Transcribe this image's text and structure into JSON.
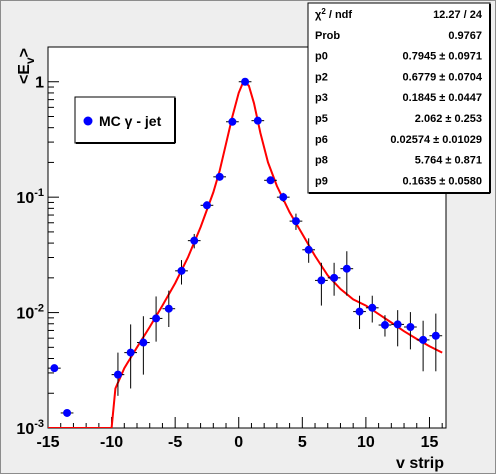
{
  "chart_data": {
    "type": "scatter",
    "xlabel": "v strip",
    "ylabel": "<E",
    "ylabel_sub": "v",
    "ylabel_close": ">",
    "xlim": [
      -15,
      16.3
    ],
    "ylim": [
      0.001,
      2
    ],
    "yscale": "log",
    "x_ticks": [
      -15,
      -10,
      -5,
      0,
      5,
      10,
      15
    ],
    "y_ticks": [
      {
        "value": 0.001,
        "base": "10",
        "exp": "-3"
      },
      {
        "value": 0.01,
        "base": "10",
        "exp": "-2"
      },
      {
        "value": 0.1,
        "base": "10",
        "exp": "-1"
      },
      {
        "value": 1,
        "base": "1",
        "exp": ""
      }
    ],
    "legend": {
      "label": "MC γ - jet",
      "marker_color": "#0000ff"
    },
    "colors": {
      "marker": "#0000ff",
      "fit": "#ff0000",
      "errorbar": "#000000",
      "frame_bg": "#eeeeee",
      "plot_bg": "#ffffff"
    },
    "series": [
      {
        "name": "MC γ - jet",
        "points": [
          {
            "x": -14.5,
            "y": 0.0033,
            "ylo": 0.0033,
            "yhi": 0.0033
          },
          {
            "x": -13.5,
            "y": 0.00135,
            "ylo": 0.00135,
            "yhi": 0.00135
          },
          {
            "x": -9.5,
            "y": 0.0029,
            "ylo": 0.0019,
            "yhi": 0.0045
          },
          {
            "x": -8.5,
            "y": 0.0045,
            "ylo": 0.0022,
            "yhi": 0.0079
          },
          {
            "x": -7.5,
            "y": 0.0055,
            "ylo": 0.0029,
            "yhi": 0.0093
          },
          {
            "x": -6.5,
            "y": 0.0089,
            "ylo": 0.0056,
            "yhi": 0.0138
          },
          {
            "x": -5.5,
            "y": 0.0108,
            "ylo": 0.0075,
            "yhi": 0.0155
          },
          {
            "x": -4.5,
            "y": 0.023,
            "ylo": 0.0175,
            "yhi": 0.0285
          },
          {
            "x": -3.5,
            "y": 0.042,
            "ylo": 0.036,
            "yhi": 0.048
          },
          {
            "x": -2.5,
            "y": 0.085,
            "ylo": 0.078,
            "yhi": 0.092
          },
          {
            "x": -1.5,
            "y": 0.15,
            "ylo": 0.14,
            "yhi": 0.16
          },
          {
            "x": -0.5,
            "y": 0.45,
            "ylo": 0.44,
            "yhi": 0.46
          },
          {
            "x": 0.5,
            "y": 1.0,
            "ylo": 0.99,
            "yhi": 1.01
          },
          {
            "x": 1.5,
            "y": 0.46,
            "ylo": 0.45,
            "yhi": 0.47
          },
          {
            "x": 2.5,
            "y": 0.14,
            "ylo": 0.13,
            "yhi": 0.15
          },
          {
            "x": 3.5,
            "y": 0.1,
            "ylo": 0.091,
            "yhi": 0.109
          },
          {
            "x": 4.5,
            "y": 0.062,
            "ylo": 0.052,
            "yhi": 0.072
          },
          {
            "x": 5.5,
            "y": 0.035,
            "ylo": 0.027,
            "yhi": 0.044
          },
          {
            "x": 6.5,
            "y": 0.019,
            "ylo": 0.0115,
            "yhi": 0.027
          },
          {
            "x": 7.5,
            "y": 0.02,
            "ylo": 0.014,
            "yhi": 0.027
          },
          {
            "x": 8.5,
            "y": 0.024,
            "ylo": 0.014,
            "yhi": 0.034
          },
          {
            "x": 9.5,
            "y": 0.0102,
            "ylo": 0.0072,
            "yhi": 0.014
          },
          {
            "x": 10.5,
            "y": 0.011,
            "ylo": 0.0082,
            "yhi": 0.014
          },
          {
            "x": 11.5,
            "y": 0.0078,
            "ylo": 0.0062,
            "yhi": 0.0095
          },
          {
            "x": 12.5,
            "y": 0.0079,
            "ylo": 0.0051,
            "yhi": 0.0105
          },
          {
            "x": 13.5,
            "y": 0.0075,
            "ylo": 0.0048,
            "yhi": 0.0101
          },
          {
            "x": 14.5,
            "y": 0.0058,
            "ylo": 0.0031,
            "yhi": 0.0085
          },
          {
            "x": 15.5,
            "y": 0.0063,
            "ylo": 0.0031,
            "yhi": 0.0098
          }
        ]
      }
    ],
    "fit_curve": [
      [
        -15,
        0.001
      ],
      [
        -10,
        0.001
      ],
      [
        -9.7,
        0.0022
      ],
      [
        -9,
        0.0033
      ],
      [
        -8,
        0.005
      ],
      [
        -7,
        0.0075
      ],
      [
        -6,
        0.0115
      ],
      [
        -5,
        0.018
      ],
      [
        -4,
        0.03
      ],
      [
        -3,
        0.055
      ],
      [
        -2,
        0.11
      ],
      [
        -1.5,
        0.17
      ],
      [
        -1,
        0.29
      ],
      [
        -0.5,
        0.5
      ],
      [
        0,
        0.8
      ],
      [
        0.3,
        0.96
      ],
      [
        0.5,
        1.0
      ],
      [
        0.8,
        0.92
      ],
      [
        1.2,
        0.65
      ],
      [
        1.7,
        0.36
      ],
      [
        2.3,
        0.2
      ],
      [
        3,
        0.125
      ],
      [
        4,
        0.074
      ],
      [
        5,
        0.048
      ],
      [
        6,
        0.031
      ],
      [
        7,
        0.021
      ],
      [
        8,
        0.016
      ],
      [
        9,
        0.013
      ],
      [
        10,
        0.0115
      ],
      [
        11,
        0.0097
      ],
      [
        12,
        0.0082
      ],
      [
        13,
        0.0069
      ],
      [
        14,
        0.0059
      ],
      [
        15,
        0.0051
      ],
      [
        16,
        0.0045
      ]
    ]
  },
  "stats": {
    "rows": [
      {
        "label": "χ² / ndf",
        "value": "12.27 / 24"
      },
      {
        "label": "Prob",
        "value": "0.9767"
      },
      {
        "label": "p0",
        "value": "0.7945 ± 0.0971"
      },
      {
        "label": "p2",
        "value": "0.6779 ± 0.0704"
      },
      {
        "label": "p3",
        "value": "0.1845 ± 0.0447"
      },
      {
        "label": "p5",
        "value": "2.062 ± 0.253"
      },
      {
        "label": "p6",
        "value": "0.02574 ± 0.01029"
      },
      {
        "label": "p8",
        "value": "5.764 ± 0.871"
      },
      {
        "label": "p9",
        "value": "0.1635 ± 0.0580"
      }
    ]
  }
}
